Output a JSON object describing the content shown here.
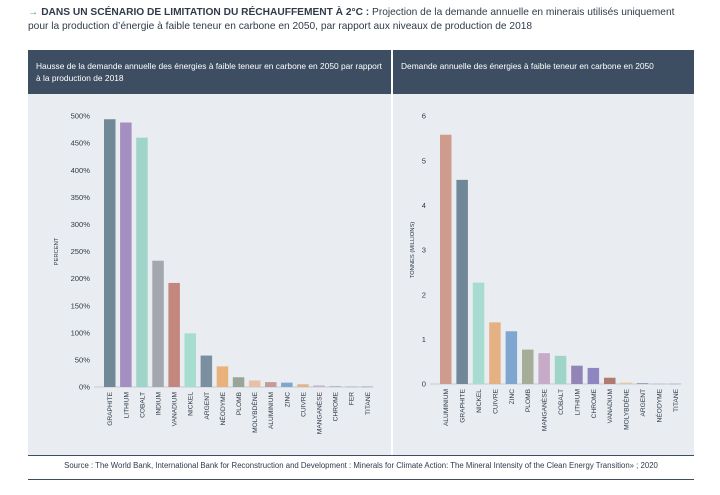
{
  "heading": {
    "arrow": "→",
    "bold": "DANS UN SCÉNARIO DE LIMITATION DU RÉCHAUFFEMENT À 2°C :",
    "rest": " Projection de la demande annuelle en minerais utilisés uniquement pour la production d’énergie à faible teneur en carbone en 2050, par rapport aux niveaux de production de 2018"
  },
  "source": "Source : The World Bank, International Bank for Reconstruction and Development : Minerals for Climate Action: The Mineral Intensity of the Clean Energy Transition» ; 2020",
  "chart_data": [
    {
      "type": "bar",
      "title": "Hausse de la demande annuelle des énergies à faible teneur en carbone en 2050 par rapport à la production de 2018",
      "ylabel": "PERCENT",
      "ylim": [
        0,
        500
      ],
      "yticks": [
        "0%",
        "50%",
        "100%",
        "150%",
        "200%",
        "250%",
        "300%",
        "350%",
        "400%",
        "450%",
        "500%"
      ],
      "categories": [
        "GRAPHITE",
        "LITHIUM",
        "COBALT",
        "INDIUM",
        "VANADIUM",
        "NICKEL",
        "ARGENT",
        "NÉODYME",
        "PLOMB",
        "MOLYBDÈNE",
        "ALUMINIUM",
        "ZINC",
        "CUIVRE",
        "MANGANÈSE",
        "CHROME",
        "FER",
        "TITANE"
      ],
      "values": [
        494,
        488,
        460,
        233,
        192,
        99,
        58,
        38,
        18,
        12,
        9,
        8,
        5,
        3,
        2,
        1,
        1
      ],
      "colors": [
        "#718897",
        "#a48fc0",
        "#9fd5c9",
        "#a3a8ae",
        "#c3877e",
        "#a7dcd0",
        "#7a8fa0",
        "#e8b27a",
        "#9aa598",
        "#e8c0a6",
        "#c79999",
        "#7fa6d1",
        "#e0b38a",
        "#c9b5cf",
        "#b5bfc8",
        "#aab7c2",
        "#a0a8b0"
      ]
    },
    {
      "type": "bar",
      "title": "Demande annuelle des énergies à faible teneur en carbone en 2050",
      "ylabel": "TONNES (MILLIONS)",
      "ylim": [
        0,
        6
      ],
      "yticks": [
        "0",
        "1",
        "2",
        "3",
        "4",
        "5",
        "6"
      ],
      "categories": [
        "ALUMINIUM",
        "GRAPHITE",
        "NICKEL",
        "CUIVRE",
        "ZINC",
        "PLOMB",
        "MANGANÈSE",
        "COBALT",
        "LITHIUM",
        "CHROME",
        "VANADIUM",
        "MOLYBDÈNE",
        "ARGENT",
        "NÉODYME",
        "TITANE"
      ],
      "values": [
        5.58,
        4.57,
        2.27,
        1.38,
        1.18,
        0.77,
        0.69,
        0.63,
        0.41,
        0.36,
        0.14,
        0.03,
        0.02,
        0.01,
        0.01
      ],
      "colors": [
        "#cf9b8c",
        "#708797",
        "#a9dcd0",
        "#e6b182",
        "#7fa6d1",
        "#a5ac97",
        "#c6aac7",
        "#9fd5c9",
        "#9384b8",
        "#8d86c0",
        "#b07a6e",
        "#e6c6a0",
        "#8fa1b3",
        "#b5bfc8",
        "#aab7c2"
      ]
    }
  ]
}
